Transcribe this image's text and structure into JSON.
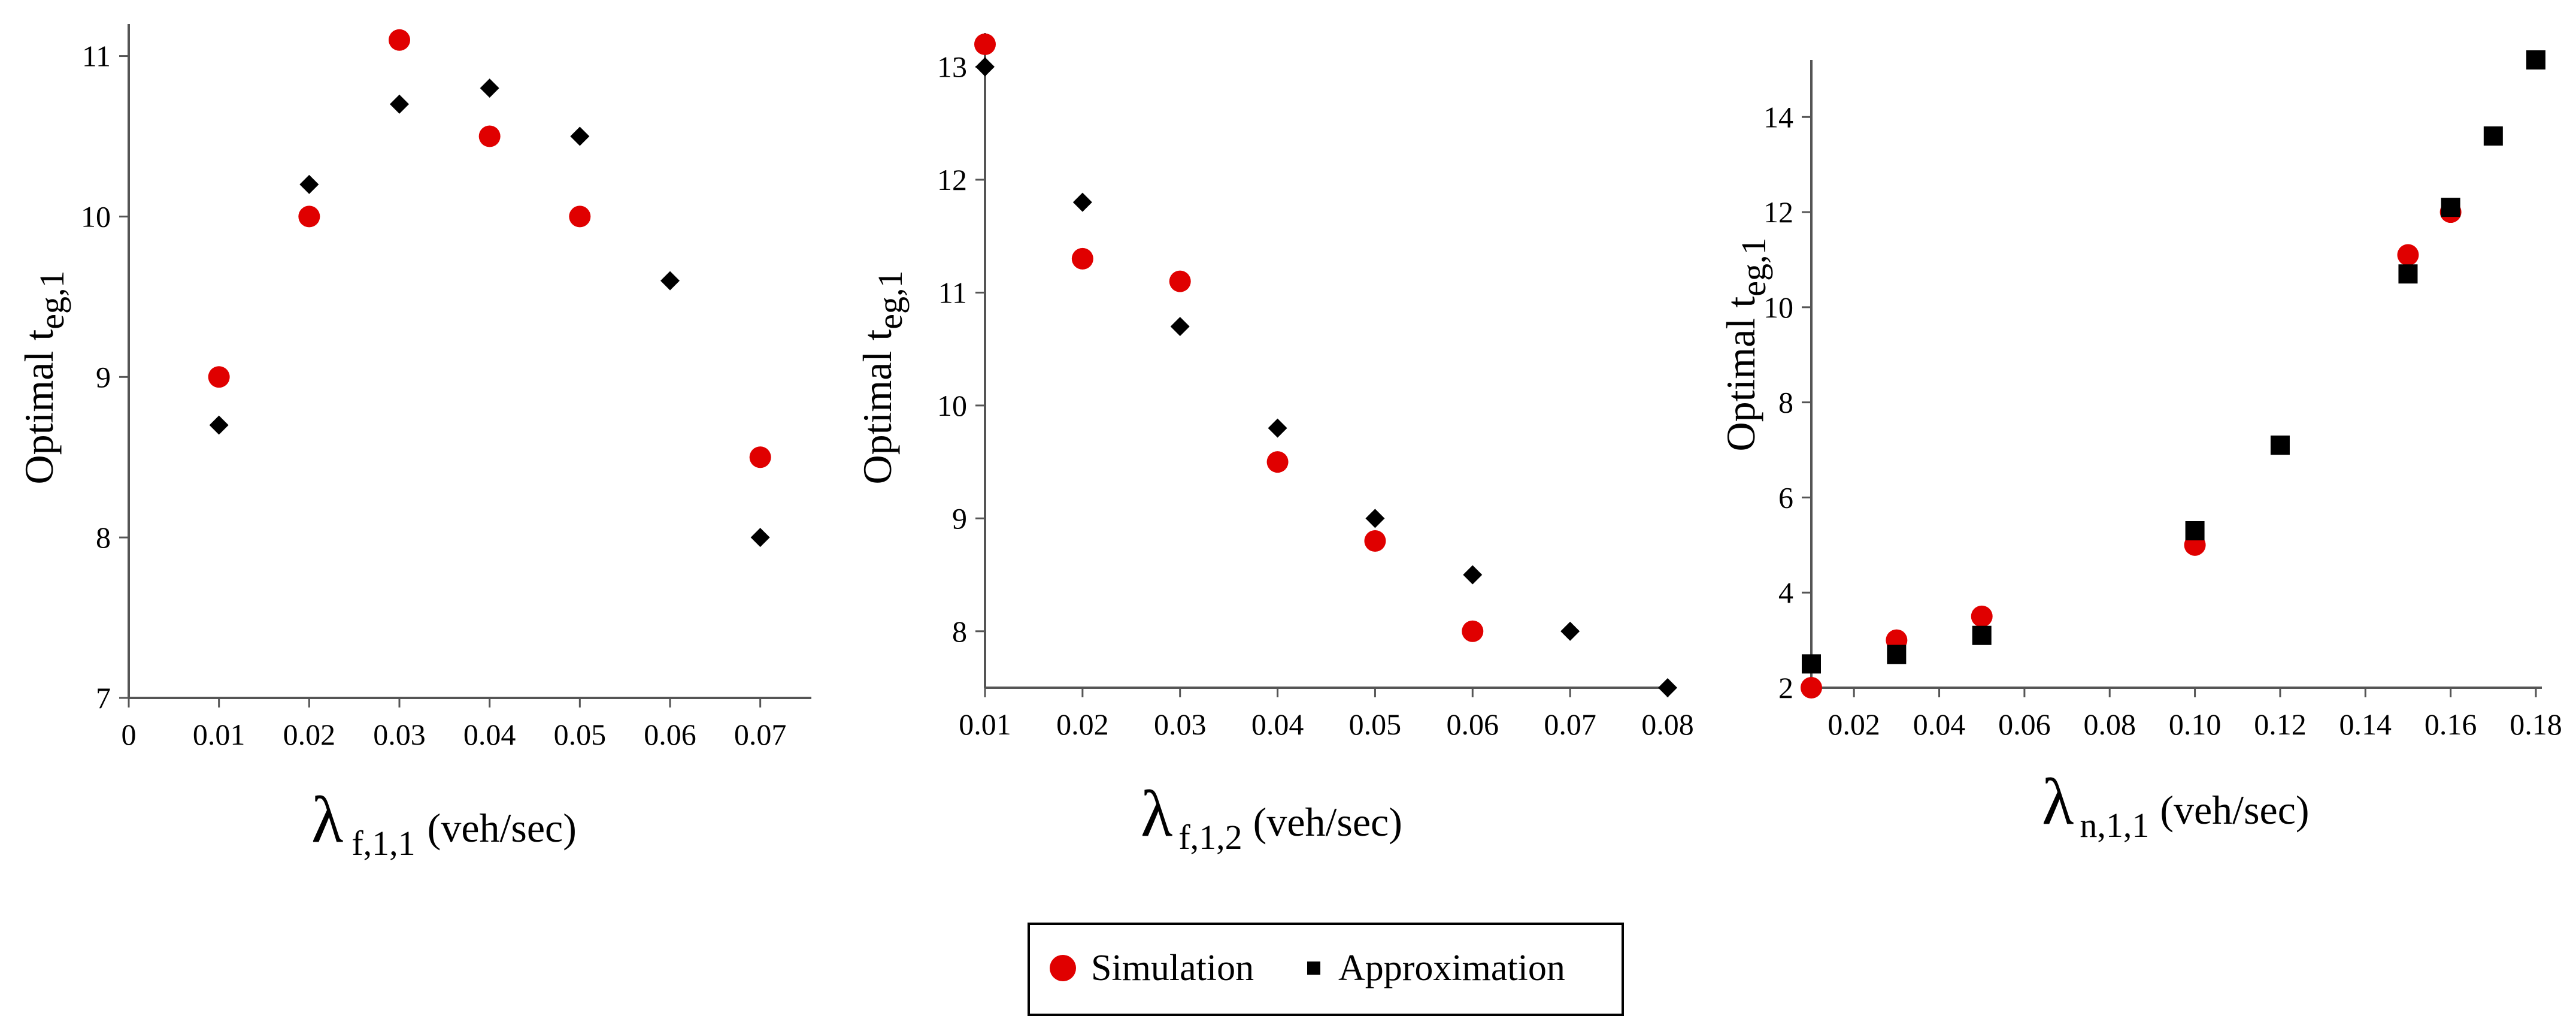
{
  "chart_data": [
    {
      "type": "scatter",
      "ylabel": {
        "prefix": "Optimal t",
        "subscript": "eg,1"
      },
      "xlabel": {
        "symbol": "λ",
        "subscript": "f,1,1",
        "unit": "(veh/sec)"
      },
      "xlim": [
        0,
        0.075
      ],
      "ylim": [
        7,
        11.2
      ],
      "xticks": [
        0,
        0.01,
        0.02,
        0.03,
        0.04,
        0.05,
        0.06,
        0.07
      ],
      "xtick_labels": [
        "0",
        "0.01",
        "0.02",
        "0.03",
        "0.04",
        "0.05",
        "0.06",
        "0.07"
      ],
      "yticks": [
        7,
        8,
        9,
        10,
        11
      ],
      "ytick_labels": [
        "7",
        "8",
        "9",
        "10",
        "11"
      ],
      "series": [
        {
          "name": "Simulation",
          "marker": "circle",
          "x": [
            0.01,
            0.02,
            0.03,
            0.04,
            0.05,
            0.07
          ],
          "y": [
            9.0,
            10.0,
            11.1,
            10.5,
            10.0,
            8.5
          ]
        },
        {
          "name": "Approximation",
          "marker": "diamond",
          "x": [
            0.01,
            0.02,
            0.03,
            0.04,
            0.05,
            0.06,
            0.07
          ],
          "y": [
            8.7,
            10.2,
            10.7,
            10.8,
            10.5,
            9.6,
            8.0
          ]
        }
      ]
    },
    {
      "type": "scatter",
      "ylabel": {
        "prefix": "Optimal t",
        "subscript": "eg,1"
      },
      "xlabel": {
        "symbol": "λ",
        "subscript": "f,1,2",
        "unit": "(veh/sec)"
      },
      "xlim": [
        0.01,
        0.08
      ],
      "ylim": [
        7.5,
        13.3
      ],
      "xticks": [
        0.01,
        0.02,
        0.03,
        0.04,
        0.05,
        0.06,
        0.07,
        0.08
      ],
      "xtick_labels": [
        "0.01",
        "0.02",
        "0.03",
        "0.04",
        "0.05",
        "0.06",
        "0.07",
        "0.08"
      ],
      "yticks": [
        8,
        9,
        10,
        11,
        12,
        13
      ],
      "ytick_labels": [
        "8",
        "9",
        "10",
        "11",
        "12",
        "13"
      ],
      "series": [
        {
          "name": "Simulation",
          "marker": "circle",
          "x": [
            0.01,
            0.02,
            0.03,
            0.04,
            0.05,
            0.06
          ],
          "y": [
            13.2,
            11.3,
            11.1,
            9.5,
            8.8,
            8.0
          ]
        },
        {
          "name": "Approximation",
          "marker": "diamond",
          "x": [
            0.01,
            0.02,
            0.03,
            0.04,
            0.05,
            0.06,
            0.07,
            0.08
          ],
          "y": [
            13.0,
            11.8,
            10.7,
            9.8,
            9.0,
            8.5,
            8.0,
            7.5
          ]
        }
      ]
    },
    {
      "type": "scatter",
      "ylabel": {
        "prefix": "Optimal t",
        "subscript": "eg,1"
      },
      "xlabel": {
        "symbol": "λ",
        "subscript": "n,1,1",
        "unit": "(veh/sec)"
      },
      "xlim": [
        0.01,
        0.18
      ],
      "ylim": [
        2,
        15.2
      ],
      "xticks": [
        0.02,
        0.04,
        0.06,
        0.08,
        0.1,
        0.12,
        0.14,
        0.16,
        0.18
      ],
      "xtick_labels": [
        "0.02",
        "0.04",
        "0.06",
        "0.08",
        "0.10",
        "0.12",
        "0.14",
        "0.16",
        "0.18"
      ],
      "yticks": [
        2,
        4,
        6,
        8,
        10,
        12,
        14
      ],
      "ytick_labels": [
        "2",
        "4",
        "6",
        "8",
        "10",
        "12",
        "14"
      ],
      "series": [
        {
          "name": "Simulation",
          "marker": "circle",
          "x": [
            0.01,
            0.03,
            0.05,
            0.1,
            0.15,
            0.16
          ],
          "y": [
            2.0,
            3.0,
            3.5,
            5.0,
            11.1,
            12.0
          ]
        },
        {
          "name": "Approximation",
          "marker": "square",
          "x": [
            0.01,
            0.03,
            0.05,
            0.1,
            0.12,
            0.15,
            0.16,
            0.17,
            0.18
          ],
          "y": [
            2.5,
            2.7,
            3.1,
            5.3,
            7.1,
            10.7,
            12.1,
            13.6,
            15.2
          ]
        }
      ]
    }
  ],
  "legend": {
    "items": [
      {
        "label": "Simulation",
        "marker": "circle",
        "color": "#e00000"
      },
      {
        "label": "Approximation",
        "marker": "square",
        "color": "#000000"
      }
    ]
  },
  "colors": {
    "simulation": "#e00000",
    "approximation": "#000000",
    "axis": "#555555"
  }
}
